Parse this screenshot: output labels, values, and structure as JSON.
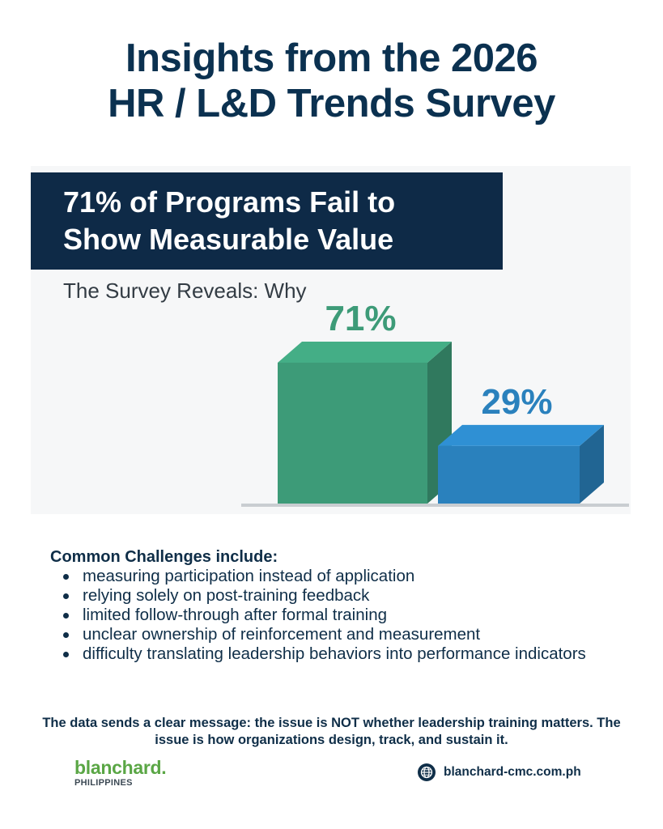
{
  "title": {
    "line1": "Insights from the 2026",
    "line2": "HR / L&D Trends Survey"
  },
  "banner": {
    "line1": "71% of Programs Fail to",
    "line2": "Show Measurable Value"
  },
  "chart_subtitle": "The Survey Reveals: Why",
  "chart_data": {
    "type": "bar",
    "categories": [
      "",
      ""
    ],
    "values": [
      71,
      29
    ],
    "data_labels": [
      "71%",
      "29%"
    ],
    "colors": [
      "#3d9b78",
      "#2a81bd"
    ],
    "ylim": [
      0,
      100
    ],
    "grid": false,
    "legend": "none"
  },
  "challenges": {
    "heading": "Common Challenges include:",
    "items": [
      "measuring participation instead of application",
      "relying solely on post-training feedback",
      "limited follow-through after formal training",
      "unclear ownership of reinforcement and measurement",
      "difficulty translating leadership behaviors into performance indicators"
    ]
  },
  "conclusion": "The data sends a clear message: the issue is NOT whether leadership training matters. The issue is how organizations design, track, and sustain it.",
  "footer": {
    "logo_word": "blanchard.",
    "logo_sub": "PHILIPPINES",
    "website": "blanchard-cmc.com.ph",
    "website_icon": "globe-icon",
    "brand_color": "#5aa645"
  }
}
